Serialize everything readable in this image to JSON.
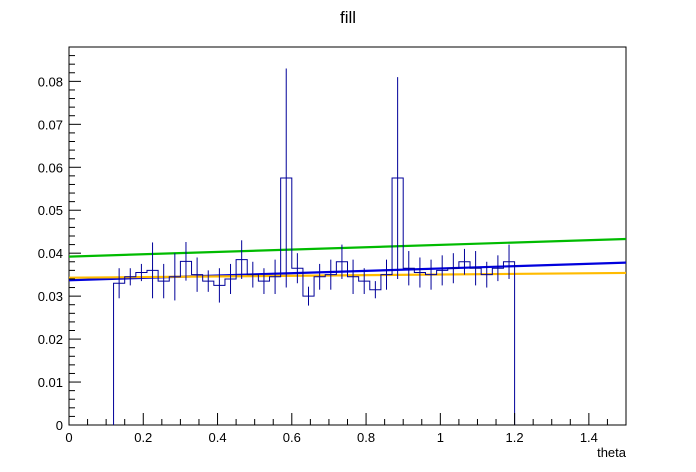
{
  "chart_data": {
    "type": "line",
    "title": "fill",
    "xlabel": "theta",
    "ylabel": "",
    "xlim": [
      0,
      1.5
    ],
    "ylim": [
      0,
      0.088
    ],
    "x_ticks": [
      0,
      0.2,
      0.4,
      0.6,
      0.8,
      1,
      1.2,
      1.4
    ],
    "x_tick_labels": [
      "0",
      "0.2",
      "0.4",
      "0.6",
      "0.8",
      "1",
      "1.2",
      "1.4"
    ],
    "y_ticks": [
      0,
      0.01,
      0.02,
      0.03,
      0.04,
      0.05,
      0.06,
      0.07,
      0.08
    ],
    "y_tick_labels": [
      "0",
      "0.01",
      "0.02",
      "0.03",
      "0.04",
      "0.05",
      "0.06",
      "0.07",
      "0.08"
    ],
    "grid": false,
    "histogram": {
      "name": "",
      "color": "#000099",
      "bin_width": 0.03,
      "bins": [
        {
          "x": 0.135,
          "y": 0.033,
          "err": 0.0035
        },
        {
          "x": 0.165,
          "y": 0.0345,
          "err": 0.002
        },
        {
          "x": 0.195,
          "y": 0.0355,
          "err": 0.002
        },
        {
          "x": 0.225,
          "y": 0.036,
          "err": 0.0065
        },
        {
          "x": 0.255,
          "y": 0.0335,
          "err": 0.004
        },
        {
          "x": 0.285,
          "y": 0.0345,
          "err": 0.0055
        },
        {
          "x": 0.315,
          "y": 0.0381,
          "err": 0.0045
        },
        {
          "x": 0.345,
          "y": 0.035,
          "err": 0.004
        },
        {
          "x": 0.375,
          "y": 0.0335,
          "err": 0.0025
        },
        {
          "x": 0.405,
          "y": 0.0325,
          "err": 0.004
        },
        {
          "x": 0.435,
          "y": 0.034,
          "err": 0.0035
        },
        {
          "x": 0.465,
          "y": 0.0385,
          "err": 0.0045
        },
        {
          "x": 0.495,
          "y": 0.035,
          "err": 0.003
        },
        {
          "x": 0.525,
          "y": 0.0335,
          "err": 0.003
        },
        {
          "x": 0.555,
          "y": 0.0345,
          "err": 0.004
        },
        {
          "x": 0.585,
          "y": 0.0575,
          "err": 0.0255
        },
        {
          "x": 0.615,
          "y": 0.0365,
          "err": 0.0035
        },
        {
          "x": 0.645,
          "y": 0.03,
          "err": 0.0022
        },
        {
          "x": 0.675,
          "y": 0.0345,
          "err": 0.003
        },
        {
          "x": 0.705,
          "y": 0.035,
          "err": 0.0035
        },
        {
          "x": 0.735,
          "y": 0.038,
          "err": 0.004
        },
        {
          "x": 0.765,
          "y": 0.0345,
          "err": 0.004
        },
        {
          "x": 0.795,
          "y": 0.0335,
          "err": 0.003
        },
        {
          "x": 0.825,
          "y": 0.0315,
          "err": 0.002
        },
        {
          "x": 0.855,
          "y": 0.035,
          "err": 0.0035
        },
        {
          "x": 0.885,
          "y": 0.0575,
          "err": 0.0235
        },
        {
          "x": 0.915,
          "y": 0.0365,
          "err": 0.004
        },
        {
          "x": 0.945,
          "y": 0.0355,
          "err": 0.0035
        },
        {
          "x": 0.975,
          "y": 0.035,
          "err": 0.0035
        },
        {
          "x": 1.005,
          "y": 0.036,
          "err": 0.0035
        },
        {
          "x": 1.035,
          "y": 0.0365,
          "err": 0.0035
        },
        {
          "x": 1.065,
          "y": 0.038,
          "err": 0.003
        },
        {
          "x": 1.095,
          "y": 0.0365,
          "err": 0.004
        },
        {
          "x": 1.125,
          "y": 0.035,
          "err": 0.003
        },
        {
          "x": 1.155,
          "y": 0.0365,
          "err": 0.003
        },
        {
          "x": 1.185,
          "y": 0.038,
          "err": 0.004
        }
      ],
      "left_edge": 0.12,
      "right_edge": 1.2
    },
    "series": [
      {
        "color": "#00bb00",
        "x": [
          0,
          1.5
        ],
        "values": [
          0.0392,
          0.0433
        ]
      },
      {
        "color": "#0000dd",
        "x": [
          0,
          1.5
        ],
        "values": [
          0.0337,
          0.0378
        ]
      },
      {
        "color": "#ffbb00",
        "x": [
          0,
          1.5
        ],
        "values": [
          0.0343,
          0.0354
        ]
      }
    ]
  }
}
